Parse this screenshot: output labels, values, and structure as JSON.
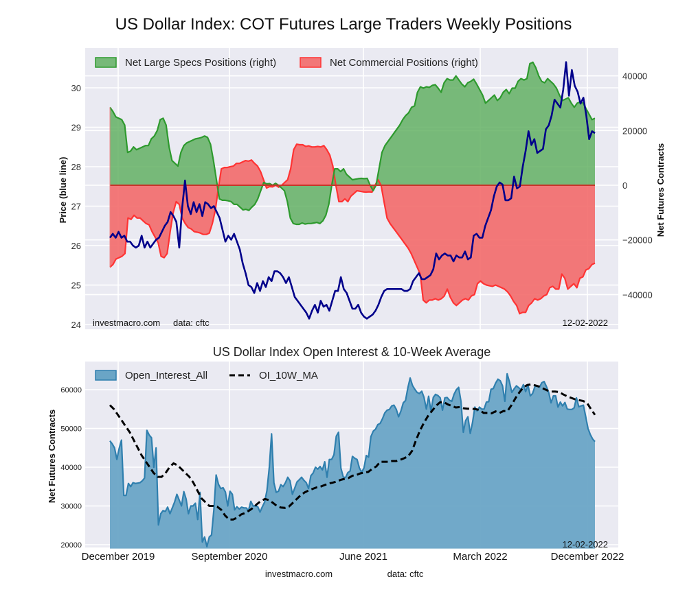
{
  "title": "US Dollar Index: COT Futures Large Traders Weekly Positions",
  "subtitle": "US Dollar Index Open Interest & 10-Week Average",
  "top_notes": {
    "source": "investmacro.com",
    "data": "data: cftc",
    "date": "12-02-2022"
  },
  "bottom_notes": {
    "date": "12-02-2022",
    "source": "investmacro.com",
    "data": "data: cftc"
  },
  "colors": {
    "specs_fill": "#5aad5a",
    "specs_line": "#2e9a2e",
    "comm_fill": "#f36a6a",
    "comm_line": "#ff3333",
    "price_line": "#00008b",
    "oi_fill": "#6aa5c6",
    "oi_line": "#2f7fae",
    "ma_line": "#000000",
    "plot_bg": "#eaeaf2"
  },
  "chart_data": [
    {
      "type": "area",
      "title": "US Dollar Index: COT Futures Large Traders Weekly Positions",
      "xlabel": "",
      "ylabel_left": "Price (blue line)",
      "ylabel_right": "Net Futures Contracts",
      "ylim_left": [
        24,
        30.8
      ],
      "ylim_right": [
        -52000,
        46000
      ],
      "yticks_left": [
        "24",
        "25",
        "26",
        "27",
        "28",
        "29",
        "30"
      ],
      "yticks_right": [
        "-40000",
        "-20000",
        "0",
        "20000",
        "40000"
      ],
      "xticks": [
        "December 2019",
        "September 2020",
        "June 2021",
        "March 2022",
        "December 2022"
      ],
      "grid": true,
      "legend": {
        "placement": "top-left",
        "entries": [
          "Net Large Specs Positions (right)",
          "Net Commercial Positions (right)"
        ]
      },
      "x_range": [
        "2019-11",
        "2022-12-02"
      ],
      "series": [
        {
          "name": "Net Large Specs Positions (right)",
          "values": [
            28500,
            27000,
            25000,
            24500,
            24000,
            22000,
            12000,
            12500,
            14000,
            13000,
            13500,
            14000,
            14500,
            14500,
            17000,
            18000,
            20000,
            24000,
            24500,
            22000,
            14000,
            9000,
            8000,
            7000,
            12000,
            14500,
            15500,
            16000,
            16500,
            17000,
            17200,
            17500,
            18000,
            17500,
            15000,
            9000,
            2000,
            -5000,
            -5500,
            -5500,
            -5700,
            -6000,
            -7000,
            -7000,
            -8000,
            -9000,
            -8800,
            -9200,
            -8000,
            -7000,
            -5000,
            -2000,
            1000,
            500,
            600,
            0,
            700,
            0,
            -1000,
            -2000,
            -6000,
            -12000,
            -14000,
            -14300,
            -14300,
            -13800,
            -14200,
            -14000,
            -14000,
            -13800,
            -13600,
            -14000,
            -13000,
            -11000,
            -7000,
            0,
            6000,
            6000,
            5000,
            6000,
            4000,
            3000,
            2000,
            2200,
            2400,
            2500,
            2400,
            2500,
            0,
            -2000,
            0,
            6000,
            12000,
            14500,
            16000,
            17500,
            19000,
            20500,
            22000,
            24000,
            25500,
            26500,
            28500,
            29000,
            34000,
            36000,
            35500,
            36000,
            35800,
            36500,
            36800,
            35500,
            34000,
            37500,
            39000,
            38500,
            38500,
            40000,
            38500,
            37000,
            36000,
            37500,
            38000,
            38800,
            37000,
            35000,
            33000,
            30000,
            31000,
            32000,
            33000,
            31000,
            32000,
            34000,
            35000,
            33500,
            35500,
            35500,
            38000,
            39000,
            38500,
            39000,
            44500,
            45000,
            43000,
            40000,
            38000,
            37500,
            39000,
            38000,
            37000,
            35500,
            33000,
            31000,
            31500,
            32000,
            30000,
            28500,
            30000,
            30500,
            30000,
            28000,
            26000,
            24000,
            24500
          ],
          "color": "#2e9a2e"
        },
        {
          "name": "Net Commercial Positions (right)",
          "values": [
            -30000,
            -29000,
            -27000,
            -26500,
            -26000,
            -25000,
            -12000,
            -12500,
            -11000,
            -12000,
            -12000,
            -13000,
            -14000,
            -14500,
            -17000,
            -19000,
            -21000,
            -26000,
            -26500,
            -25000,
            -17000,
            -10000,
            -6000,
            -7000,
            -12000,
            -14000,
            -15500,
            -16000,
            -17000,
            -17200,
            -17500,
            -18000,
            -18000,
            -17500,
            -14000,
            -9000,
            -1000,
            6000,
            6500,
            6500,
            6800,
            7000,
            8000,
            8000,
            8500,
            9000,
            8800,
            9200,
            8000,
            7000,
            5000,
            2000,
            -1000,
            -500,
            -600,
            0,
            -700,
            0,
            1000,
            2000,
            6000,
            13000,
            15000,
            14800,
            14800,
            14200,
            14400,
            14000,
            14000,
            14200,
            14000,
            14500,
            13000,
            11000,
            7000,
            0,
            -6000,
            -6000,
            -5000,
            -6000,
            -4000,
            -3000,
            -2000,
            -2200,
            -2400,
            -2500,
            -2400,
            -2500,
            0,
            2000,
            0,
            -6000,
            -12000,
            -14000,
            -15500,
            -17000,
            -18500,
            -20000,
            -21500,
            -23000,
            -25000,
            -27500,
            -30000,
            -32500,
            -42000,
            -43000,
            -42000,
            -42000,
            -41500,
            -42000,
            -41500,
            -40500,
            -38000,
            -41000,
            -43000,
            -44000,
            -43000,
            -42000,
            -41500,
            -42000,
            -40500,
            -40000,
            -36000,
            -35000,
            -36000,
            -36500,
            -36800,
            -37000,
            -36500,
            -37000,
            -37500,
            -38000,
            -39000,
            -40500,
            -42500,
            -44000,
            -47000,
            -46500,
            -46500,
            -44000,
            -43000,
            -41500,
            -42000,
            -41500,
            -40500,
            -40000,
            -37500,
            -37000,
            -38000,
            -38000,
            -32500,
            -34000,
            -38000,
            -37000,
            -36000,
            -37500,
            -34000,
            -33500,
            -31000,
            -30500,
            -29000,
            -28500
          ],
          "color": "#ff3333"
        },
        {
          "name": "Price (blue line)",
          "axis": "left",
          "values": [
            26.2,
            26.3,
            26.2,
            26.35,
            26.2,
            26.25,
            26.1,
            26.1,
            26.0,
            25.95,
            26.0,
            26.25,
            25.95,
            26.1,
            25.95,
            26.05,
            26.15,
            26.2,
            26.35,
            26.5,
            26.6,
            26.85,
            26.75,
            26.6,
            25.95,
            26.95,
            27.65,
            27.0,
            26.8,
            27.1,
            26.85,
            27.05,
            26.75,
            27.1,
            27.05,
            26.95,
            27.0,
            26.85,
            26.7,
            26.4,
            26.1,
            26.25,
            26.15,
            26.3,
            26.1,
            25.9,
            25.55,
            25.3,
            25.0,
            24.95,
            24.8,
            25.05,
            24.85,
            25.1,
            24.95,
            25.2,
            25.1,
            25.35,
            25.35,
            25.3,
            25.2,
            25.05,
            25.2,
            24.95,
            24.7,
            24.6,
            24.5,
            24.4,
            24.3,
            24.15,
            24.35,
            24.5,
            24.3,
            24.6,
            24.45,
            24.5,
            24.35,
            24.6,
            24.85,
            24.85,
            25.2,
            24.9,
            24.8,
            24.6,
            24.4,
            24.4,
            24.5,
            24.3,
            24.2,
            24.15,
            24.2,
            24.25,
            24.35,
            24.5,
            24.7,
            24.85,
            24.9,
            24.9,
            24.9,
            24.9,
            24.9,
            24.9,
            24.85,
            24.85,
            24.9,
            25.1,
            25.2,
            25.3,
            25.15,
            25.15,
            25.2,
            25.25,
            25.4,
            25.8,
            25.65,
            25.75,
            25.8,
            25.75,
            25.75,
            25.6,
            25.75,
            25.7,
            25.7,
            25.85,
            25.65,
            25.7,
            26.25,
            26.3,
            26.2,
            26.2,
            26.5,
            26.7,
            26.9,
            27.25,
            27.5,
            27.6,
            27.55,
            27.15,
            27.15,
            27.2,
            27.75,
            27.45,
            27.5,
            28.0,
            28.4,
            28.9,
            28.55,
            28.7,
            28.35,
            28.4,
            28.45,
            28.95,
            29.05,
            29.3,
            29.7,
            29.6,
            29.5,
            29.95,
            30.65,
            29.8,
            30.45,
            30.05,
            29.9,
            29.6,
            29.75,
            29.3,
            28.7,
            28.9,
            28.85
          ],
          "color": "#00008b"
        }
      ]
    },
    {
      "type": "area",
      "title": "US Dollar Index Open Interest & 10-Week Average",
      "xlabel": "",
      "ylabel": "Net Futures Contracts",
      "ylim": [
        19000,
        67000
      ],
      "yticks": [
        "20000",
        "30000",
        "40000",
        "50000",
        "60000"
      ],
      "xticks": [
        "December 2019",
        "September 2020",
        "June 2021",
        "March 2022",
        "December 2022"
      ],
      "grid": true,
      "legend": {
        "placement": "top-left",
        "entries": [
          "Open_Interest_All",
          "OI_10W_MA"
        ]
      },
      "series": [
        {
          "name": "Open_Interest_All",
          "values": [
            46800,
            46000,
            45000,
            42000,
            44800,
            47000,
            32700,
            32700,
            35800,
            35000,
            36000,
            35800,
            35900,
            36000,
            36500,
            37200,
            49500,
            48300,
            47600,
            40000,
            45000,
            25100,
            28000,
            28800,
            28600,
            29700,
            28000,
            29500,
            31000,
            33000,
            31500,
            30000,
            33700,
            31800,
            28000,
            30000,
            30000,
            30700,
            26500,
            33500,
            20700,
            22000,
            19500,
            22000,
            22500,
            29000,
            38000,
            35600,
            34500,
            34700,
            33600,
            30000,
            33800,
            33000,
            29000,
            29800,
            29200,
            29700,
            29500,
            29500,
            28800,
            31200,
            30000,
            30000,
            29800,
            28400,
            29800,
            31000,
            34000,
            40000,
            48600,
            36000,
            33500,
            33800,
            35500,
            35000,
            36000,
            37400,
            36500,
            33000,
            34600,
            36200,
            36800,
            37400,
            36600,
            36000,
            34500,
            37800,
            38500,
            40000,
            39500,
            40200,
            39300,
            41400,
            37400,
            42000,
            42000,
            43200,
            48000,
            49000,
            39800,
            37500,
            37300,
            38600,
            39000,
            42800,
            42300,
            42000,
            39800,
            38700,
            39800,
            43000,
            42600,
            47900,
            49300,
            49800,
            51000,
            51300,
            52500,
            54000,
            54700,
            54900,
            55800,
            56000,
            54900,
            53000,
            54500,
            56600,
            57200,
            60500,
            63000,
            61100,
            60100,
            59300,
            59000,
            59600,
            58000,
            55000,
            58300,
            54500,
            58000,
            58800,
            58500,
            57900,
            54700,
            57900,
            58000,
            57300,
            57000,
            58800,
            60000,
            60600,
            57000,
            49000,
            52000,
            53000,
            48700,
            51500,
            55500,
            54500,
            55500,
            55000,
            55000,
            56800,
            56900,
            60100,
            60300,
            61700,
            62700,
            62300,
            61000,
            57000,
            64100,
            62000,
            59300,
            60200,
            61000,
            60500,
            60000,
            61300,
            59500,
            61200,
            58400,
            59000,
            60800,
            61000,
            60600,
            61800,
            62100,
            60800,
            59200,
            56600,
            58400,
            58400,
            55500,
            56800,
            55800,
            56700,
            55000,
            54900,
            54900,
            55300,
            57900,
            55600,
            55800,
            56000,
            53000,
            50000,
            48400,
            47300,
            46600
          ],
          "color": "#2f7fae"
        },
        {
          "name": "OI_10W_MA",
          "values": [
            56000,
            55000,
            53500,
            52000,
            50500,
            49000,
            47000,
            45000,
            43000,
            41500,
            40000,
            38500,
            37500,
            37500,
            38500,
            40000,
            41000,
            40500,
            39500,
            38500,
            37500,
            36000,
            34000,
            32000,
            31000,
            30000,
            30000,
            29800,
            29000,
            27500,
            26500,
            26500,
            27000,
            27800,
            28200,
            28800,
            29500,
            30500,
            31300,
            31800,
            31500,
            30800,
            30000,
            29600,
            29500,
            29800,
            30800,
            31800,
            32800,
            33500,
            34000,
            34400,
            34800,
            35000,
            35400,
            35800,
            36000,
            36300,
            36700,
            37000,
            37200,
            37800,
            38000,
            38400,
            38600,
            38800,
            39600,
            40200,
            41400,
            41400,
            41400,
            41600,
            41600,
            41900,
            42300,
            42800,
            44200,
            47000,
            49500,
            51500,
            53200,
            54500,
            55800,
            56700,
            56800,
            56200,
            55800,
            55400,
            55500,
            55200,
            55100,
            55100,
            55000,
            54700,
            54000,
            54000,
            53900,
            54400,
            54000,
            54500,
            54500,
            56000,
            57800,
            59300,
            60600,
            61200,
            61400,
            61100,
            60800,
            60300,
            59800,
            59500,
            59500,
            59400,
            58800,
            58300,
            57900,
            57500,
            57300,
            57100,
            56600,
            55000,
            53500
          ],
          "color": "#000000"
        }
      ]
    }
  ]
}
